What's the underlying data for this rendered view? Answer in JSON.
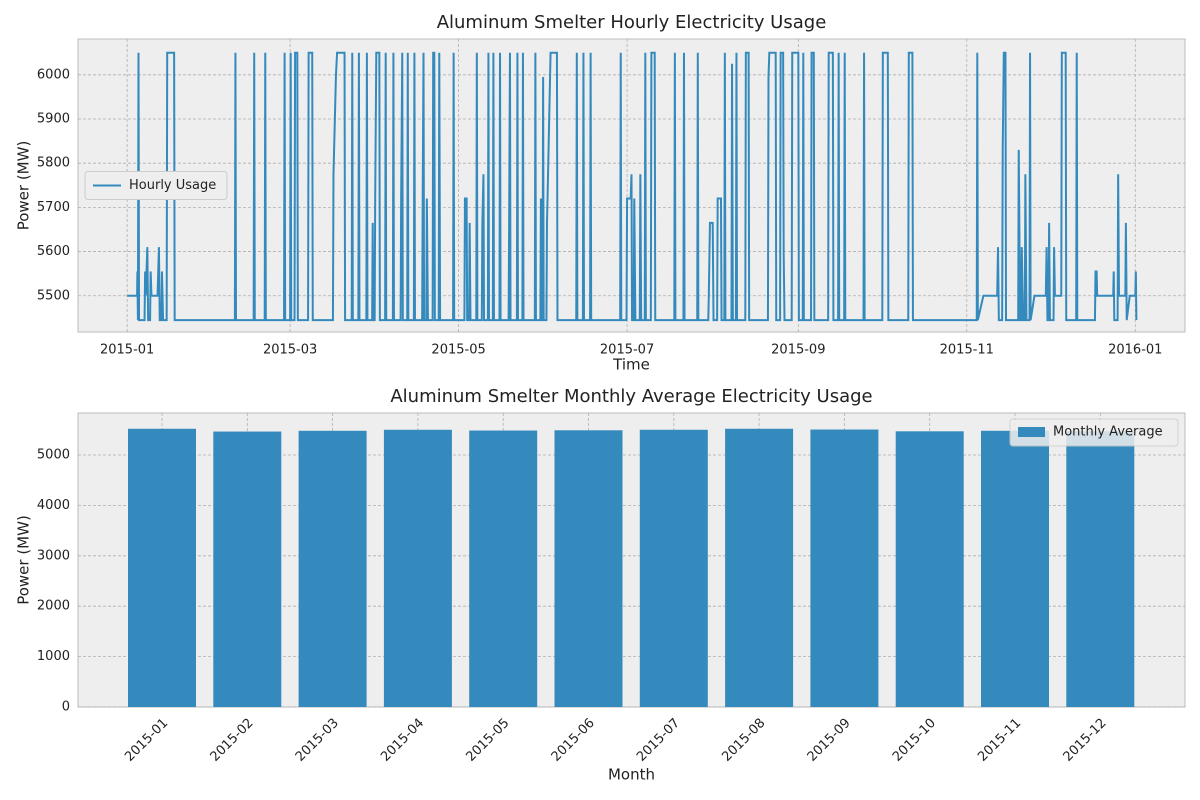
{
  "chart_data": [
    {
      "type": "line",
      "title": "Aluminum Smelter Hourly Electricity Usage",
      "xlabel": "Time",
      "ylabel": "Power (MW)",
      "x": [
        0,
        3.6,
        3.7,
        3.9,
        4.1,
        4.3,
        6.3,
        6.5,
        6.7,
        7.3,
        7.6,
        8.3,
        8.5,
        8.8,
        11,
        11.5,
        11.8,
        12.4,
        12.6,
        13,
        14.3,
        14.5,
        17,
        17.2,
        39,
        39.2,
        39.4,
        45.8,
        46,
        46.2,
        49.8,
        50,
        50.2,
        56.8,
        57,
        57.2,
        59,
        59.2,
        59.4,
        60.6,
        60.8,
        61.6,
        61.8,
        65.5,
        65.7,
        67,
        67.2,
        74.5,
        74.7,
        75.6,
        76,
        78.7,
        78.9,
        81.3,
        81.5,
        81.7,
        83.7,
        83.9,
        84.1,
        86.6,
        86.8,
        87,
        88.7,
        88.9,
        89.1,
        89.6,
        89.8,
        90.2,
        91.3,
        91.5,
        93.4,
        93.6,
        93.8,
        96.2,
        96.4,
        96.6,
        99,
        99.2,
        99.6,
        99.8,
        101.4,
        101.6,
        101.8,
        103.8,
        104,
        104.2,
        106.8,
        107,
        107.3,
        107.5,
        108.3,
        108.5,
        108.9,
        110.6,
        110.8,
        111.2,
        111.4,
        112.8,
        113,
        113.3,
        118,
        118.2,
        118.4,
        122.1,
        122.3,
        122.9,
        123.1,
        123.8,
        124,
        124.3,
        126.4,
        126.6,
        126.8,
        128.4,
        128.6,
        129,
        129.2,
        130.6,
        130.8,
        131,
        132.4,
        132.6,
        132.8,
        134.8,
        135,
        135.2,
        138.1,
        138.3,
        138.6,
        138.8,
        141.1,
        141.3,
        141.5,
        143.1,
        143.3,
        143.5,
        147.6,
        147.8,
        148,
        149.6,
        149.8,
        150,
        150.4,
        150.6,
        150.8,
        151.8,
        152,
        152.2,
        153.3,
        155.6,
        155.8,
        162.6,
        162.8,
        163,
        165,
        165.2,
        165.4,
        167.6,
        167.8,
        168,
        178.5,
        178.7,
        178.9,
        180.8,
        181,
        182.3,
        182.6,
        182.8,
        183.4,
        183.6,
        184,
        185.6,
        185.8,
        186.1,
        187.4,
        187.6,
        187.8,
        189.6,
        189.8,
        191,
        191.2,
        198.1,
        198.3,
        198.5,
        201.4,
        201.6,
        201.8,
        206.4,
        206.6,
        206.8,
        210.4,
        210.6,
        211,
        212,
        212.3,
        213.6,
        213.8,
        215,
        215.2,
        216.2,
        216.4,
        216.6,
        218.8,
        219,
        219.3,
        220.4,
        220.6,
        220.8,
        223.8,
        224,
        225,
        225.2,
        232,
        232.2,
        232.5,
        234.8,
        235,
        236.4,
        236.6,
        237.5,
        237.7,
        238,
        240.6,
        240.8,
        243,
        243.2,
        244.6,
        244.8,
        245,
        247.6,
        247.8,
        248.6,
        248.8,
        253.8,
        254,
        255.5,
        255.7,
        257.4,
        257.6,
        257.8,
        259.6,
        259.8,
        260,
        266.6,
        266.8,
        267,
        273.4,
        273.6,
        275.4,
        275.6,
        282.8,
        283,
        284.3,
        284.5,
        307.6,
        307.8,
        308,
        310,
        315,
        315.3,
        315.6,
        316.8,
        317,
        317.4,
        318,
        318.2,
        322.6,
        322.8,
        323.3,
        323.7,
        323.9,
        324.4,
        325,
        325.2,
        325.6,
        326.7,
        326.9,
        327.1,
        328.5,
        332.6,
        332.9,
        333.2,
        333.6,
        333.8,
        334.1,
        335.4,
        335.6,
        335.9,
        338.2,
        338.4,
        339.8,
        340,
        343.6,
        343.8,
        344,
        350.4,
        350.6,
        351,
        351.2,
        357,
        357.2,
        357.4,
        358.6,
        358.8,
        359.1,
        361.4,
        361.6,
        361.9,
        363,
        365,
        365.2,
        365.4
      ],
      "series": [
        {
          "name": "Hourly Usage",
          "color": "#348abd",
          "values": [
            5500,
            5500,
            5555,
            5445,
            6050,
            5445,
            5445,
            5555,
            5500,
            5610,
            5445,
            5445,
            5555,
            5500,
            5500,
            5610,
            5445,
            5445,
            5555,
            5445,
            5445,
            6050,
            6050,
            5445,
            5445,
            6050,
            5445,
            5445,
            6050,
            5445,
            5445,
            6050,
            5445,
            5445,
            6050,
            5445,
            5445,
            6050,
            5445,
            5445,
            6050,
            6050,
            5445,
            5445,
            6050,
            6050,
            5445,
            5445,
            5775,
            6000,
            6050,
            6050,
            5445,
            5445,
            6050,
            5445,
            5445,
            6050,
            5445,
            5445,
            6050,
            5445,
            5445,
            5665,
            5445,
            5445,
            5720,
            6050,
            6050,
            5445,
            5445,
            6050,
            5445,
            5445,
            6050,
            5445,
            5445,
            5720,
            6050,
            5445,
            5445,
            6050,
            5445,
            5445,
            6050,
            5445,
            5445,
            5720,
            6050,
            5445,
            5445,
            5720,
            5445,
            5445,
            6050,
            6050,
            5445,
            5445,
            6050,
            5445,
            5445,
            6050,
            5445,
            5445,
            5720,
            5720,
            5445,
            5445,
            5665,
            5445,
            5445,
            6050,
            5445,
            5445,
            5665,
            5775,
            5445,
            5445,
            6050,
            5445,
            5445,
            6050,
            5445,
            5445,
            6050,
            5445,
            5445,
            5665,
            6050,
            5445,
            5445,
            6050,
            5445,
            5445,
            6050,
            5445,
            5445,
            6050,
            5445,
            5445,
            5720,
            5445,
            5445,
            5995,
            5445,
            5445,
            5665,
            5720,
            6050,
            6050,
            5445,
            5445,
            6050,
            5445,
            5445,
            6050,
            5445,
            5445,
            6050,
            5445,
            5445,
            6050,
            5445,
            5445,
            5720,
            5720,
            5775,
            5445,
            5445,
            5720,
            5445,
            5445,
            5775,
            5445,
            5445,
            6050,
            5445,
            5445,
            6050,
            6050,
            5445,
            5445,
            6050,
            5445,
            5445,
            6050,
            5445,
            5445,
            6050,
            5445,
            5445,
            5505,
            5665,
            5665,
            5445,
            5445,
            5720,
            5720,
            5445,
            5445,
            6050,
            5445,
            5445,
            6025,
            5445,
            5445,
            6050,
            5445,
            5445,
            6050,
            6050,
            5445,
            5445,
            5995,
            6050,
            6050,
            5445,
            5445,
            6050,
            6050,
            5595,
            5445,
            5445,
            6050,
            6050,
            5445,
            5445,
            6050,
            5445,
            5445,
            6050,
            6050,
            5445,
            5445,
            6050,
            6050,
            5445,
            5445,
            6050,
            5445,
            5445,
            6050,
            5445,
            5445,
            6050,
            5445,
            5445,
            6050,
            6050,
            5445,
            5445,
            6050,
            6050,
            5445,
            5445,
            6050,
            5445,
            5500,
            5500,
            5610,
            5445,
            5445,
            5830,
            6050,
            6050,
            5445,
            5445,
            5830,
            5445,
            5445,
            5610,
            5445,
            5445,
            5775,
            5445,
            5445,
            6050,
            5445,
            5500,
            5500,
            5610,
            5445,
            5445,
            5665,
            5445,
            5445,
            5610,
            5500,
            5500,
            6050,
            6050,
            5445,
            5445,
            6050,
            5445,
            5445,
            5555,
            5555,
            5500,
            5500,
            5555,
            5445,
            5445,
            5775,
            5500,
            5500,
            5665,
            5445,
            5500,
            5500,
            5555,
            5445
          ]
        }
      ],
      "xlim": [
        -17.8,
        383
      ],
      "ylim": [
        5418,
        6081
      ],
      "xticks": [
        {
          "value": 0,
          "label": "2015-01"
        },
        {
          "value": 59,
          "label": "2015-03"
        },
        {
          "value": 120,
          "label": "2015-05"
        },
        {
          "value": 181,
          "label": "2015-07"
        },
        {
          "value": 243,
          "label": "2015-09"
        },
        {
          "value": 304,
          "label": "2015-11"
        },
        {
          "value": 365,
          "label": "2016-01"
        }
      ],
      "yticks": [
        5500,
        5600,
        5700,
        5800,
        5900,
        6000
      ],
      "grid": true,
      "legend": "center left"
    },
    {
      "type": "bar",
      "title": "Aluminum Smelter Monthly Average Electricity Usage",
      "xlabel": "Month",
      "ylabel": "Power (MW)",
      "categories": [
        "2015-01",
        "2015-02",
        "2015-03",
        "2015-04",
        "2015-05",
        "2015-06",
        "2015-07",
        "2015-08",
        "2015-09",
        "2015-10",
        "2015-11",
        "2015-12"
      ],
      "series": [
        {
          "name": "Monthly Average",
          "color": "#348abd",
          "values": [
            5520,
            5465,
            5480,
            5500,
            5485,
            5490,
            5500,
            5520,
            5505,
            5470,
            5480,
            5470
          ]
        }
      ],
      "ylim": [
        0,
        5833
      ],
      "yticks": [
        0,
        1000,
        2000,
        3000,
        4000,
        5000
      ],
      "grid": true,
      "legend": "upper right"
    }
  ]
}
